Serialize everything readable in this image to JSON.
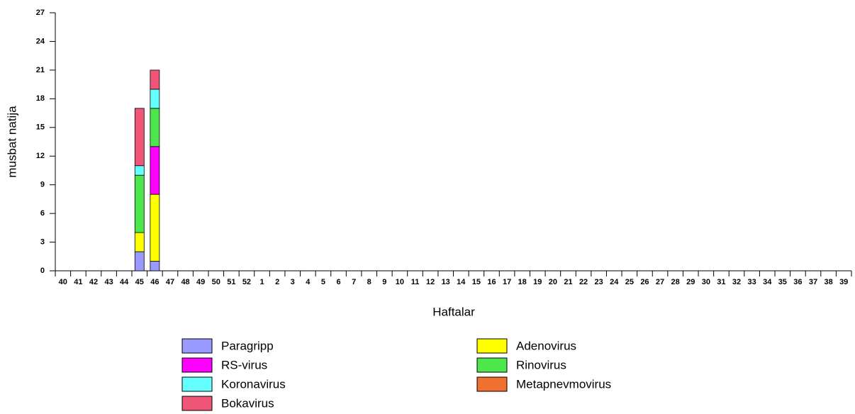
{
  "chart_data": {
    "type": "stacked_bar",
    "x_label": "Haftalar",
    "y_label": "musbat natija",
    "categories": [
      "40",
      "41",
      "42",
      "43",
      "44",
      "45",
      "46",
      "47",
      "48",
      "49",
      "50",
      "51",
      "52",
      "1",
      "2",
      "3",
      "4",
      "5",
      "6",
      "7",
      "8",
      "9",
      "10",
      "11",
      "12",
      "13",
      "14",
      "15",
      "16",
      "17",
      "18",
      "19",
      "20",
      "21",
      "22",
      "23",
      "24",
      "25",
      "26",
      "27",
      "28",
      "29",
      "30",
      "31",
      "32",
      "33",
      "34",
      "35",
      "36",
      "37",
      "38",
      "39"
    ],
    "series": [
      {
        "name": "Paragripp",
        "color": "#9999ff",
        "values": [
          0,
          0,
          0,
          0,
          0,
          2,
          1,
          0,
          0,
          0,
          0,
          0,
          0,
          0,
          0,
          0,
          0,
          0,
          0,
          0,
          0,
          0,
          0,
          0,
          0,
          0,
          0,
          0,
          0,
          0,
          0,
          0,
          0,
          0,
          0,
          0,
          0,
          0,
          0,
          0,
          0,
          0,
          0,
          0,
          0,
          0,
          0,
          0,
          0,
          0,
          0,
          0
        ]
      },
      {
        "name": "Adenovirus",
        "color": "#ffff00",
        "values": [
          0,
          0,
          0,
          0,
          0,
          2,
          7,
          0,
          0,
          0,
          0,
          0,
          0,
          0,
          0,
          0,
          0,
          0,
          0,
          0,
          0,
          0,
          0,
          0,
          0,
          0,
          0,
          0,
          0,
          0,
          0,
          0,
          0,
          0,
          0,
          0,
          0,
          0,
          0,
          0,
          0,
          0,
          0,
          0,
          0,
          0,
          0,
          0,
          0,
          0,
          0,
          0
        ]
      },
      {
        "name": "RS-virus",
        "color": "#ff00ff",
        "values": [
          0,
          0,
          0,
          0,
          0,
          0,
          5,
          0,
          0,
          0,
          0,
          0,
          0,
          0,
          0,
          0,
          0,
          0,
          0,
          0,
          0,
          0,
          0,
          0,
          0,
          0,
          0,
          0,
          0,
          0,
          0,
          0,
          0,
          0,
          0,
          0,
          0,
          0,
          0,
          0,
          0,
          0,
          0,
          0,
          0,
          0,
          0,
          0,
          0,
          0,
          0,
          0
        ]
      },
      {
        "name": "Rinovirus",
        "color": "#4de64d",
        "values": [
          0,
          0,
          0,
          0,
          0,
          6,
          4,
          0,
          0,
          0,
          0,
          0,
          0,
          0,
          0,
          0,
          0,
          0,
          0,
          0,
          0,
          0,
          0,
          0,
          0,
          0,
          0,
          0,
          0,
          0,
          0,
          0,
          0,
          0,
          0,
          0,
          0,
          0,
          0,
          0,
          0,
          0,
          0,
          0,
          0,
          0,
          0,
          0,
          0,
          0,
          0,
          0
        ]
      },
      {
        "name": "Koronavirus",
        "color": "#66ffff",
        "values": [
          0,
          0,
          0,
          0,
          0,
          1,
          2,
          0,
          0,
          0,
          0,
          0,
          0,
          0,
          0,
          0,
          0,
          0,
          0,
          0,
          0,
          0,
          0,
          0,
          0,
          0,
          0,
          0,
          0,
          0,
          0,
          0,
          0,
          0,
          0,
          0,
          0,
          0,
          0,
          0,
          0,
          0,
          0,
          0,
          0,
          0,
          0,
          0,
          0,
          0,
          0,
          0
        ]
      },
      {
        "name": "Metapnevmovirus",
        "color": "#f07030",
        "values": [
          0,
          0,
          0,
          0,
          0,
          0,
          0,
          0,
          0,
          0,
          0,
          0,
          0,
          0,
          0,
          0,
          0,
          0,
          0,
          0,
          0,
          0,
          0,
          0,
          0,
          0,
          0,
          0,
          0,
          0,
          0,
          0,
          0,
          0,
          0,
          0,
          0,
          0,
          0,
          0,
          0,
          0,
          0,
          0,
          0,
          0,
          0,
          0,
          0,
          0,
          0,
          0
        ]
      },
      {
        "name": "Bokavirus",
        "color": "#ee5577",
        "values": [
          0,
          0,
          0,
          0,
          0,
          6,
          2,
          0,
          0,
          0,
          0,
          0,
          0,
          0,
          0,
          0,
          0,
          0,
          0,
          0,
          0,
          0,
          0,
          0,
          0,
          0,
          0,
          0,
          0,
          0,
          0,
          0,
          0,
          0,
          0,
          0,
          0,
          0,
          0,
          0,
          0,
          0,
          0,
          0,
          0,
          0,
          0,
          0,
          0,
          0,
          0,
          0
        ]
      }
    ],
    "ylim": [
      0,
      27
    ],
    "yticks": [
      0,
      3,
      6,
      9,
      12,
      15,
      18,
      21,
      24,
      27
    ]
  }
}
